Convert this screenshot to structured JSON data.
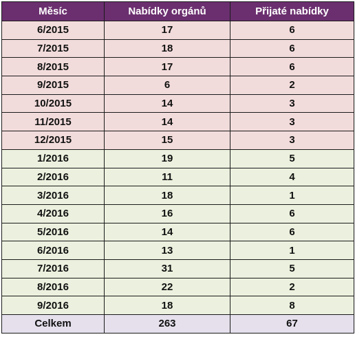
{
  "table": {
    "headers": [
      "Měsíc",
      "Nabídky orgánů",
      "Přijaté nabídky"
    ],
    "rows": [
      {
        "month": "6/2015",
        "offers": "17",
        "accepted": "6",
        "group": "y2015"
      },
      {
        "month": "7/2015",
        "offers": "18",
        "accepted": "6",
        "group": "y2015"
      },
      {
        "month": "8/2015",
        "offers": "17",
        "accepted": "6",
        "group": "y2015"
      },
      {
        "month": "9/2015",
        "offers": "6",
        "accepted": "2",
        "group": "y2015"
      },
      {
        "month": "10/2015",
        "offers": "14",
        "accepted": "3",
        "group": "y2015"
      },
      {
        "month": "11/2015",
        "offers": "14",
        "accepted": "3",
        "group": "y2015"
      },
      {
        "month": "12/2015",
        "offers": "15",
        "accepted": "3",
        "group": "y2015"
      },
      {
        "month": "1/2016",
        "offers": "19",
        "accepted": "5",
        "group": "y2016"
      },
      {
        "month": "2/2016",
        "offers": "11",
        "accepted": "4",
        "group": "y2016"
      },
      {
        "month": "3/2016",
        "offers": "18",
        "accepted": "1",
        "group": "y2016"
      },
      {
        "month": "4/2016",
        "offers": "16",
        "accepted": "6",
        "group": "y2016"
      },
      {
        "month": "5/2016",
        "offers": "14",
        "accepted": "6",
        "group": "y2016"
      },
      {
        "month": "6/2016",
        "offers": "13",
        "accepted": "1",
        "group": "y2016"
      },
      {
        "month": "7/2016",
        "offers": "31",
        "accepted": "5",
        "group": "y2016"
      },
      {
        "month": "8/2016",
        "offers": "22",
        "accepted": "2",
        "group": "y2016"
      },
      {
        "month": "9/2016",
        "offers": "18",
        "accepted": "8",
        "group": "y2016"
      }
    ],
    "total": {
      "label": "Celkem",
      "offers": "263",
      "accepted": "67"
    }
  },
  "colors": {
    "header": "#6b2f6f",
    "rows_2015": "#f2dcdb",
    "rows_2016": "#ebf1de",
    "total_row": "#e5e0ec"
  }
}
